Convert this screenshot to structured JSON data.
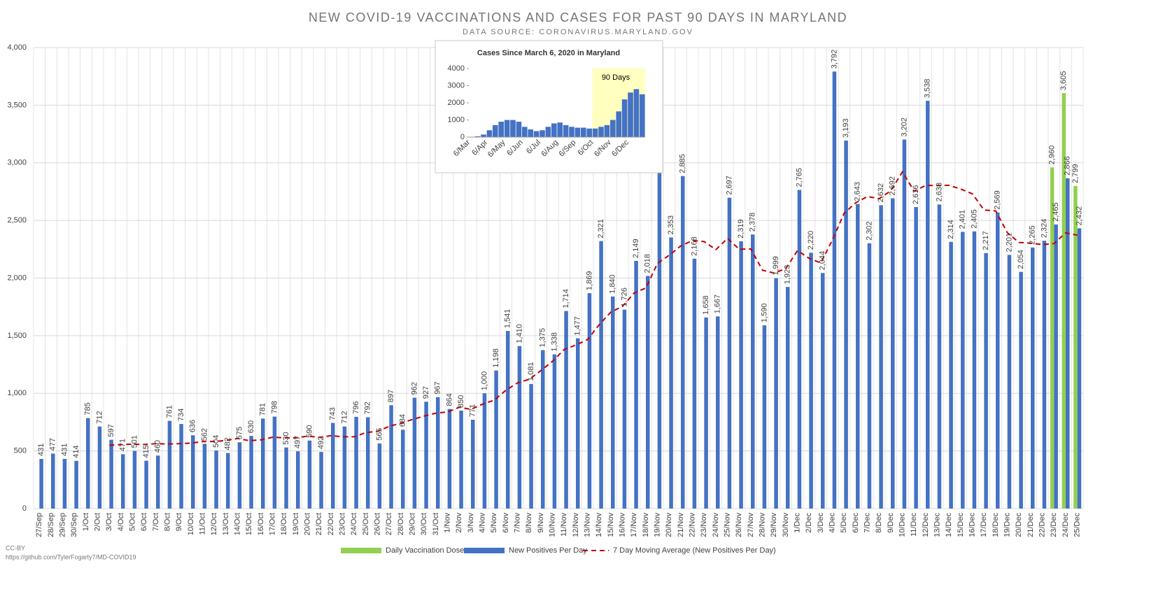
{
  "chart_data": [
    {
      "type": "bar",
      "title": "NEW COVID-19 VACCINATIONS AND CASES FOR PAST 90 DAYS IN MARYLAND",
      "subtitle": "DATA SOURCE: CORONAVIRUS.MARYLAND.GOV",
      "footer": [
        "CC-BY",
        "https://github.com/TylerFogarty7/MD-COVID19"
      ],
      "categories": [
        "27/Sep",
        "28/Sep",
        "29/Sep",
        "30/Sep",
        "1/Oct",
        "2/Oct",
        "3/Oct",
        "4/Oct",
        "5/Oct",
        "6/Oct",
        "7/Oct",
        "8/Oct",
        "9/Oct",
        "10/Oct",
        "11/Oct",
        "12/Oct",
        "13/Oct",
        "14/Oct",
        "15/Oct",
        "16/Oct",
        "17/Oct",
        "18/Oct",
        "19/Oct",
        "20/Oct",
        "21/Oct",
        "22/Oct",
        "23/Oct",
        "24/Oct",
        "25/Oct",
        "26/Oct",
        "27/Oct",
        "28/Oct",
        "29/Oct",
        "30/Oct",
        "31/Oct",
        "1/Nov",
        "2/Nov",
        "3/Nov",
        "4/Nov",
        "5/Nov",
        "6/Nov",
        "7/Nov",
        "8/Nov",
        "9/Nov",
        "10/Nov",
        "11/Nov",
        "12/Nov",
        "13/Nov",
        "14/Nov",
        "15/Nov",
        "16/Nov",
        "17/Nov",
        "18/Nov",
        "19/Nov",
        "20/Nov",
        "21/Nov",
        "22/Nov",
        "23/Nov",
        "24/Nov",
        "25/Nov",
        "26/Nov",
        "27/Nov",
        "28/Nov",
        "29/Nov",
        "30/Nov",
        "1/Dec",
        "2/Dec",
        "3/Dec",
        "4/Dec",
        "5/Dec",
        "6/Dec",
        "7/Dec",
        "8/Dec",
        "9/Dec",
        "10/Dec",
        "11/Dec",
        "12/Dec",
        "13/Dec",
        "14/Dec",
        "15/Dec",
        "16/Dec",
        "17/Dec",
        "18/Dec",
        "19/Dec",
        "20/Dec",
        "21/Dec",
        "22/Dec",
        "23/Dec",
        "24/Dec",
        "25/Dec"
      ],
      "series": [
        {
          "name": "Daily Vaccination Doses",
          "type": "bar",
          "color": "#92d050",
          "values": [
            null,
            null,
            null,
            null,
            null,
            null,
            null,
            null,
            null,
            null,
            null,
            null,
            null,
            null,
            null,
            null,
            null,
            null,
            null,
            null,
            null,
            null,
            null,
            null,
            null,
            null,
            null,
            null,
            null,
            null,
            null,
            null,
            null,
            null,
            null,
            null,
            null,
            null,
            null,
            null,
            null,
            null,
            null,
            null,
            null,
            null,
            null,
            null,
            null,
            null,
            null,
            null,
            null,
            null,
            null,
            null,
            null,
            null,
            null,
            null,
            null,
            null,
            null,
            null,
            null,
            null,
            null,
            null,
            null,
            null,
            null,
            null,
            null,
            null,
            null,
            null,
            null,
            null,
            null,
            null,
            null,
            null,
            null,
            null,
            null,
            null,
            null,
            2960,
            3605,
            2799
          ],
          "value_labels": [
            null,
            null,
            null,
            null,
            null,
            null,
            null,
            null,
            null,
            null,
            null,
            null,
            null,
            null,
            null,
            null,
            null,
            null,
            null,
            null,
            null,
            null,
            null,
            null,
            null,
            null,
            null,
            null,
            null,
            null,
            null,
            null,
            null,
            null,
            null,
            null,
            null,
            null,
            null,
            null,
            null,
            null,
            null,
            null,
            null,
            null,
            null,
            null,
            null,
            null,
            null,
            null,
            null,
            null,
            null,
            null,
            null,
            null,
            null,
            null,
            null,
            null,
            null,
            null,
            null,
            null,
            null,
            null,
            null,
            null,
            null,
            null,
            null,
            null,
            null,
            null,
            null,
            null,
            null,
            null,
            null,
            null,
            null,
            null,
            null,
            null,
            null,
            "2,960",
            "3,605",
            "2,799"
          ]
        },
        {
          "name": "New Positives Per Day",
          "type": "bar",
          "color": "#4472c4",
          "values": [
            431,
            477,
            431,
            414,
            785,
            712,
            597,
            471,
            501,
            415,
            460,
            761,
            734,
            636,
            562,
            504,
            482,
            575,
            630,
            781,
            798,
            530,
            497,
            590,
            492,
            743,
            712,
            796,
            792,
            565,
            897,
            684,
            962,
            927,
            967,
            864,
            850,
            771,
            1000,
            1198,
            1541,
            1410,
            1081,
            1375,
            1338,
            1714,
            1477,
            1869,
            2321,
            1840,
            1726,
            2149,
            2018,
            2980,
            2353,
            2885,
            2168,
            1658,
            1667,
            2697,
            2319,
            2378,
            1590,
            1999,
            1923,
            2765,
            2220,
            2044,
            3792,
            3193,
            2643,
            2302,
            2632,
            2692,
            3202,
            2616,
            3538,
            2638,
            2314,
            2401,
            2405,
            2217,
            2569,
            2201,
            2054,
            2265,
            2324,
            2465,
            2866,
            2432
          ],
          "value_labels": [
            "431",
            "477",
            "431",
            "414",
            "785",
            "712",
            "597",
            "471",
            "501",
            "415",
            "460",
            "761",
            "734",
            "636",
            "562",
            "504",
            "482",
            "575",
            "630",
            "781",
            "798",
            "530",
            "497",
            "590",
            "492",
            "743",
            "712",
            "796",
            "792",
            "565",
            "897",
            "684",
            "962",
            "927",
            "967",
            "864",
            "850",
            "771",
            "1,000",
            "1,198",
            "1,541",
            "1,410",
            "1,081",
            "1,375",
            "1,338",
            "1,714",
            "1,477",
            "1,869",
            "2,321",
            "1,840",
            "1,726",
            "2,149",
            "2,018",
            null,
            "2,353",
            "2,885",
            "2,168",
            "1,658",
            "1,667",
            "2,697",
            "2,319",
            "2,378",
            "1,590",
            "1,999",
            "1,923",
            "2,765",
            "2,220",
            "2,044",
            "3,792",
            "3,193",
            "2,643",
            "2,302",
            "2,632",
            "2,692",
            "3,202",
            "2,616",
            "3,538",
            "2,638",
            "2,314",
            "2,401",
            "2,405",
            "2,217",
            "2,569",
            "2,201",
            "2,054",
            "2,265",
            "2,324",
            "2,465",
            "2,866",
            "2,432"
          ]
        },
        {
          "name": "7 Day Moving Average (New Positives Per Day)",
          "type": "line",
          "line_style": "dashed",
          "color": "#c00000",
          "values": [
            null,
            null,
            null,
            null,
            null,
            null,
            550,
            555,
            559,
            556,
            563,
            560,
            563,
            568,
            581,
            582,
            591,
            608,
            589,
            596,
            619,
            614,
            613,
            629,
            617,
            633,
            623,
            623,
            660,
            670,
            714,
            741,
            773,
            803,
            828,
            838,
            879,
            861,
            906,
            940,
            1027,
            1091,
            1122,
            1197,
            1278,
            1380,
            1419,
            1466,
            1596,
            1705,
            1755,
            1871,
            1914,
            2129,
            2198,
            2279,
            2326,
            2316,
            2247,
            2344,
            2250,
            2253,
            2068,
            2044,
            2082,
            2239,
            2171,
            2131,
            2333,
            2562,
            2654,
            2708,
            2689,
            2757,
            2922,
            2754,
            2804,
            2803,
            2805,
            2772,
            2731,
            2590,
            2583,
            2392,
            2309,
            2302,
            2291,
            2299,
            2392,
            2372
          ]
        }
      ],
      "ylim": [
        0,
        4000
      ],
      "yticks": [
        0,
        500,
        {
          "value": 1000,
          "label": "1,000"
        },
        {
          "value": 1500,
          "label": "1,500"
        },
        {
          "value": 2000,
          "label": "2,000"
        },
        {
          "value": 2500,
          "label": "2,500"
        },
        {
          "value": 3000,
          "label": "3,000"
        },
        {
          "value": 3500,
          "label": "3,500"
        },
        {
          "value": 4000,
          "label": "4,000"
        }
      ],
      "grid": true,
      "legend": "bottom"
    },
    {
      "type": "bar",
      "title": "Cases Since March 6, 2020 in Maryland",
      "annotation": "90 Days",
      "categories": [
        "6/Mar",
        null,
        null,
        "6/Apr",
        null,
        null,
        "6/May",
        null,
        null,
        "6/Jun",
        null,
        null,
        "6/Jul",
        null,
        null,
        "6/Aug",
        null,
        null,
        "6/Sep",
        null,
        null,
        "6/Oct",
        null,
        null,
        "6/Nov",
        null,
        null,
        "6/Dec",
        null,
        null
      ],
      "values": [
        10,
        50,
        150,
        400,
        700,
        900,
        1000,
        1000,
        900,
        600,
        450,
        350,
        400,
        600,
        800,
        850,
        700,
        600,
        550,
        550,
        500,
        500,
        600,
        700,
        1000,
        1500,
        2200,
        2600,
        2800,
        2500
      ],
      "color": "#4472c4",
      "ylim": [
        0,
        4000
      ],
      "yticks": [
        0,
        1000,
        2000,
        3000,
        4000
      ],
      "grid": false
    }
  ]
}
